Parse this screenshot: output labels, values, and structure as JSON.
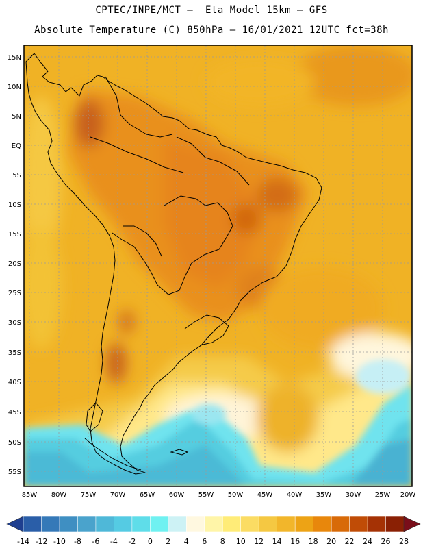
{
  "header": {
    "line1": "CPTEC/INPE/MCT –  Eta Model 15km – GFS",
    "line2": "Absolute Temperature (C) 850hPa – 16/01/2021 12UTC fct=38h"
  },
  "map": {
    "lat_labels": [
      "15N",
      "10N",
      "5N",
      "EQ",
      "5S",
      "10S",
      "15S",
      "20S",
      "25S",
      "30S",
      "35S",
      "40S",
      "45S",
      "50S",
      "55S"
    ],
    "lon_labels": [
      "85W",
      "80W",
      "75W",
      "70W",
      "65W",
      "60W",
      "55W",
      "50W",
      "45W",
      "40W",
      "35W",
      "30W",
      "25W",
      "20W"
    ]
  },
  "colorbar": {
    "labels": [
      "-14",
      "-12",
      "-10",
      "-8",
      "-6",
      "-4",
      "-2",
      "0",
      "2",
      "4",
      "6",
      "8",
      "10",
      "12",
      "14",
      "16",
      "18",
      "20",
      "22",
      "24",
      "26",
      "28"
    ],
    "colors": [
      "#1f3f8f",
      "#2a5ea8",
      "#3579b8",
      "#3f8fc2",
      "#4aa3cc",
      "#4fb8d8",
      "#55cbe3",
      "#5fdde9",
      "#6ff1f1",
      "#cdf2f5",
      "#fff8e0",
      "#fff5a8",
      "#ffec78",
      "#fbdc63",
      "#f5c842",
      "#f2b62b",
      "#eda315",
      "#e8870c",
      "#d86a08",
      "#c04c06",
      "#a53205",
      "#8a2004",
      "#7a0e1a"
    ]
  }
}
